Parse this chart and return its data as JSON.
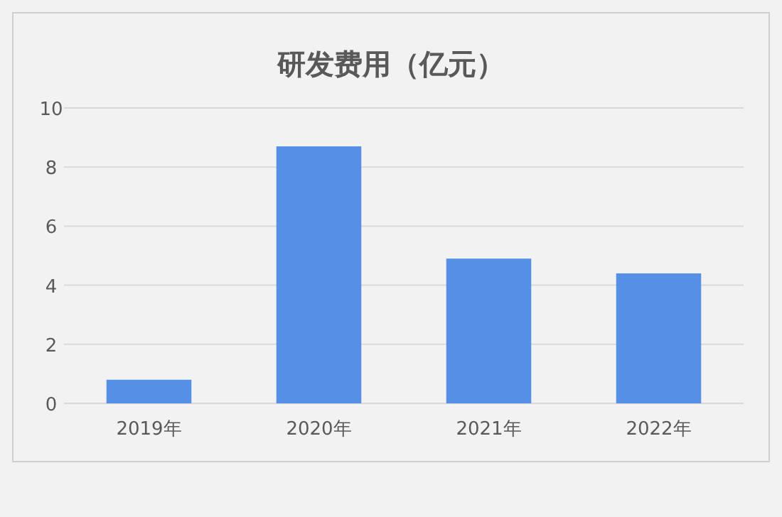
{
  "chart_data": {
    "type": "bar",
    "title": "研发费用（亿元）",
    "categories": [
      "2019年",
      "2020年",
      "2021年",
      "2022年"
    ],
    "values": [
      0.8,
      8.7,
      4.9,
      4.4
    ],
    "color": "#5590e6",
    "ylim": [
      0,
      10
    ],
    "yticks": [
      0,
      2,
      4,
      6,
      8,
      10
    ],
    "grid": "y"
  }
}
